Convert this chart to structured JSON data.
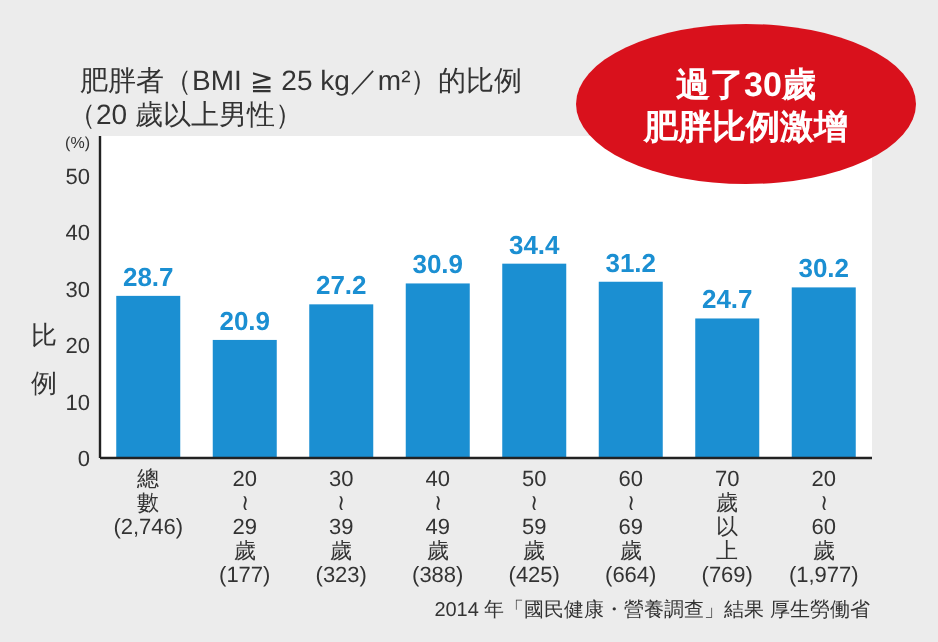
{
  "chart_data": {
    "type": "bar",
    "title": "肥胖者（BMI ≧ 25 kg／m²）的比例",
    "subtitle": "（20 歲以上男性）",
    "ylabel": "比例",
    "categories": [
      "總數\n(2,746)",
      "20\n≀\n29\n歲\n(177)",
      "30\n≀\n39\n歲\n(323)",
      "40\n≀\n49\n歲\n(388)",
      "50\n≀\n59\n歲\n(425)",
      "60\n≀\n69\n歲\n(664)",
      "70\n歲以上\n(769)",
      "20\n≀\n60\n歲\n(1,977)"
    ],
    "values": [
      28.7,
      20.9,
      27.2,
      30.9,
      34.4,
      31.2,
      24.7,
      30.2
    ],
    "color": "#1b8fd2",
    "ylim": [
      0,
      57
    ],
    "yticks": [
      0,
      10,
      20,
      30,
      40,
      50
    ],
    "data_labels": true,
    "annotations": [
      "(%)",
      "過了30歲",
      "肥胖比例激增",
      "2014 年「國民健康・營養調查」結果 厚生勞働省"
    ]
  }
}
